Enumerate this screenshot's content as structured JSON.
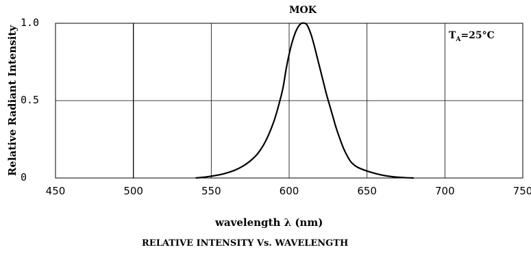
{
  "chart_data": {
    "type": "line",
    "title": "MOK",
    "xlabel": "wavelength λ (nm)",
    "ylabel": "Relative Radiant Intensity",
    "caption": "RELATIVE INTENSITY Vs. WAVELENGTH",
    "annotation": {
      "main": "T",
      "sub": "A",
      "rest": "=25°C"
    },
    "xlim": [
      450,
      750
    ],
    "ylim": [
      0,
      1.0
    ],
    "x_ticks": [
      450,
      500,
      550,
      600,
      650,
      700,
      750
    ],
    "x_tick_labels": [
      "450",
      "500",
      "550",
      "600",
      "650",
      "700",
      "750"
    ],
    "y_ticks": [
      0,
      0.5,
      1.0
    ],
    "y_tick_labels": [
      "0",
      "0.5",
      "1.0"
    ],
    "grid": true,
    "series": [
      {
        "x": [
          540,
          545,
          550,
          555,
          560,
          565,
          570,
          575,
          580,
          585,
          590,
          593,
          596,
          598,
          600,
          602,
          604,
          606,
          608,
          610,
          611,
          612,
          614,
          616,
          618,
          620,
          622,
          624,
          626,
          628,
          630,
          632,
          635,
          638,
          640,
          643,
          646,
          650,
          655,
          660,
          665,
          670,
          675,
          680
        ],
        "y": [
          0.0,
          0.005,
          0.012,
          0.02,
          0.033,
          0.05,
          0.075,
          0.11,
          0.16,
          0.24,
          0.36,
          0.46,
          0.58,
          0.7,
          0.8,
          0.88,
          0.94,
          0.98,
          1.0,
          1.0,
          0.995,
          0.98,
          0.93,
          0.86,
          0.78,
          0.7,
          0.62,
          0.54,
          0.47,
          0.4,
          0.33,
          0.27,
          0.19,
          0.13,
          0.1,
          0.075,
          0.06,
          0.045,
          0.03,
          0.018,
          0.01,
          0.005,
          0.002,
          0.0
        ],
        "color": "#000000"
      }
    ]
  }
}
